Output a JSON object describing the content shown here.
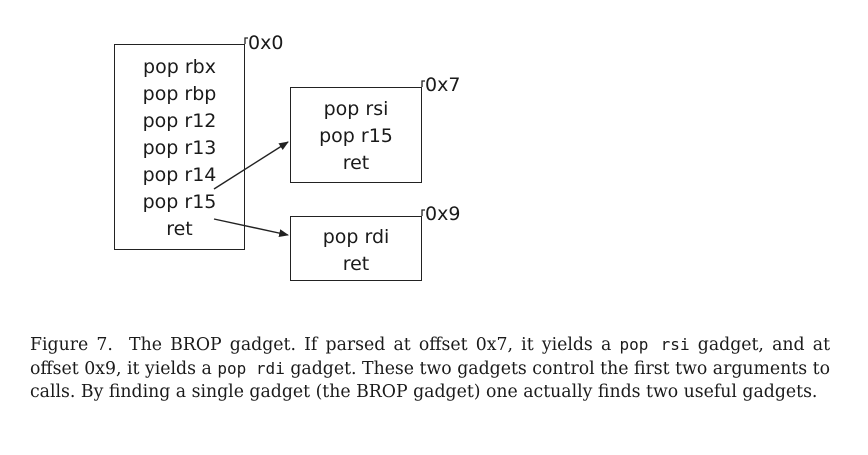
{
  "diagram": {
    "main_box": {
      "offset_label": "0x0",
      "lines": [
        "pop rbx",
        "pop rbp",
        "pop r12",
        "pop r13",
        "pop r14",
        "pop r15",
        "ret"
      ]
    },
    "rsi_box": {
      "offset_label": "0x7",
      "lines": [
        "pop rsi",
        "pop r15",
        "ret"
      ]
    },
    "rdi_box": {
      "offset_label": "0x9",
      "lines": [
        "pop rdi",
        "ret"
      ]
    }
  },
  "caption": {
    "figure_label": "Figure 7.",
    "text_1": "The BROP gadget. If parsed at offset 0x7, it yields a",
    "code_1": "pop rsi",
    "text_2": "gadget, and at offset 0x9, it yields a",
    "code_2": "pop rdi",
    "text_3": "gadget. These two gadgets control the first two arguments to calls. By finding a single gadget (the BROP gadget) one actually finds two useful gadgets."
  }
}
